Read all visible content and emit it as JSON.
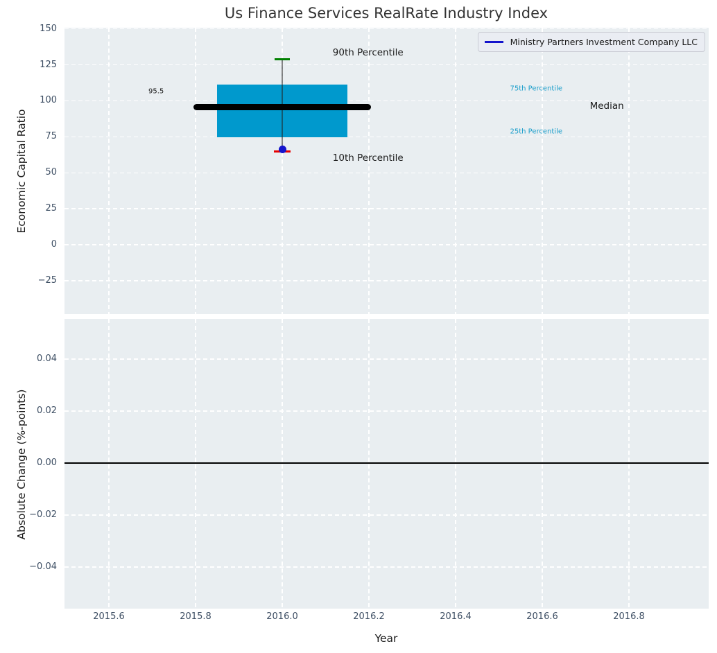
{
  "title": "Us Finance Services RealRate Industry Index",
  "legend": {
    "label": "Ministry Partners Investment Company LLC"
  },
  "colors": {
    "figure_bg": "#ffffff",
    "axes_bg": "#e9eef1",
    "grid": "#ffffff",
    "box_fill": "#0099cd",
    "median_line": "#000000",
    "whisker": "rgba(35,35,35,0.55)",
    "cap_90": "#008000",
    "cap_10": "#e60000",
    "company_point": "#1414cc",
    "legend_line": "#1414cc",
    "tick_label": "#3d4e63",
    "annotation_dark": "#1a1a1a",
    "annotation_cyan": "#1b9ecb",
    "zero_line": "#000000",
    "title_color": "#333333"
  },
  "chart_data": {
    "type": "boxplot",
    "title": "Us Finance Services RealRate Industry Index",
    "xlabel": "Year",
    "legend_position": "upper right",
    "grid": true,
    "xlim": [
      2015.4976,
      2016.984
    ],
    "xticks": {
      "values": [
        2015.6,
        2015.8,
        2016.0,
        2016.2,
        2016.4,
        2016.6,
        2016.8
      ],
      "labels": [
        "2015.6",
        "2015.8",
        "2016.0",
        "2016.2",
        "2016.4",
        "2016.6",
        "2016.8"
      ]
    },
    "subplots": [
      {
        "name": "economic_capital_ratio",
        "ylabel": "Economic Capital Ratio",
        "ylim": [
          -48.1,
          150.8
        ],
        "yticks": {
          "values": [
            150,
            125,
            100,
            75,
            50,
            25,
            0,
            -25
          ],
          "labels": [
            "150",
            "125",
            "100",
            "75",
            "50",
            "25",
            "0",
            "−25"
          ]
        },
        "box": {
          "x": 2016.0,
          "median": 95.5,
          "q1": 74.5,
          "q3": 111.5,
          "p10": 64.6,
          "p90": 129.0,
          "box_x0": 2015.85,
          "box_x1": 2016.15,
          "median_x0": 2015.795,
          "median_x1": 2016.205
        },
        "company_point": {
          "x": 2016.0,
          "y": 66.5
        },
        "annotations": [
          {
            "name": "median-value-label",
            "text": "95.5",
            "x": 2015.709,
            "y": 106.5,
            "color_key": "annotation_dark",
            "size": 10
          },
          {
            "name": "annotation-90th-percentile",
            "text": "90th Percentile",
            "x": 2016.198,
            "y": 133.5,
            "color_key": "annotation_dark",
            "size": 13.5
          },
          {
            "name": "annotation-10th-percentile",
            "text": "10th Percentile",
            "x": 2016.198,
            "y": 60.3,
            "color_key": "annotation_dark",
            "size": 13.5
          },
          {
            "name": "annotation-75th-percentile",
            "text": "75th Percentile",
            "x": 2016.586,
            "y": 108.4,
            "color_key": "annotation_cyan",
            "size": 10
          },
          {
            "name": "annotation-25th-percentile",
            "text": "25th Percentile",
            "x": 2016.586,
            "y": 78.6,
            "color_key": "annotation_cyan",
            "size": 10
          },
          {
            "name": "annotation-median",
            "text": "Median",
            "x": 2016.749,
            "y": 96.4,
            "color_key": "annotation_dark",
            "size": 13.5
          }
        ]
      },
      {
        "name": "absolute_change",
        "ylabel": "Absolute Change (%-points)",
        "ylim": [
          -0.056,
          0.0555
        ],
        "yticks": {
          "values": [
            0.04,
            0.02,
            0.0,
            -0.02,
            -0.04
          ],
          "labels": [
            "0.04",
            "0.02",
            "0.00",
            "−0.02",
            "−0.04"
          ]
        },
        "zero_line": 0.0
      }
    ]
  }
}
